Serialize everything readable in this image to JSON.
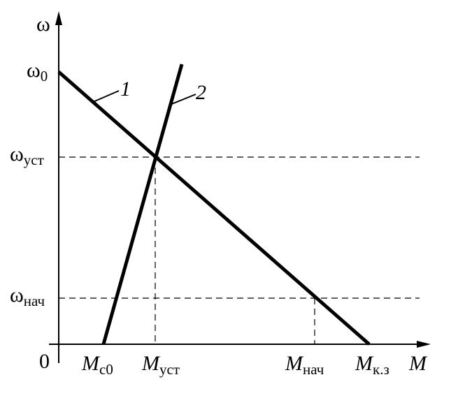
{
  "axes": {
    "y_label": "ω",
    "x_label": "M",
    "origin": "0"
  },
  "y_marks": [
    {
      "symbol": "ω",
      "subscript": "0"
    },
    {
      "symbol": "ω",
      "subscript": "уст"
    },
    {
      "symbol": "ω",
      "subscript": "нач"
    }
  ],
  "x_marks": [
    {
      "symbol": "M",
      "subscript": "с0"
    },
    {
      "symbol": "M",
      "subscript": "уст"
    },
    {
      "symbol": "M",
      "subscript": "нач"
    },
    {
      "symbol": "M",
      "subscript": "к.з"
    }
  ],
  "curves": [
    {
      "label": "1"
    },
    {
      "label": "2"
    }
  ]
}
